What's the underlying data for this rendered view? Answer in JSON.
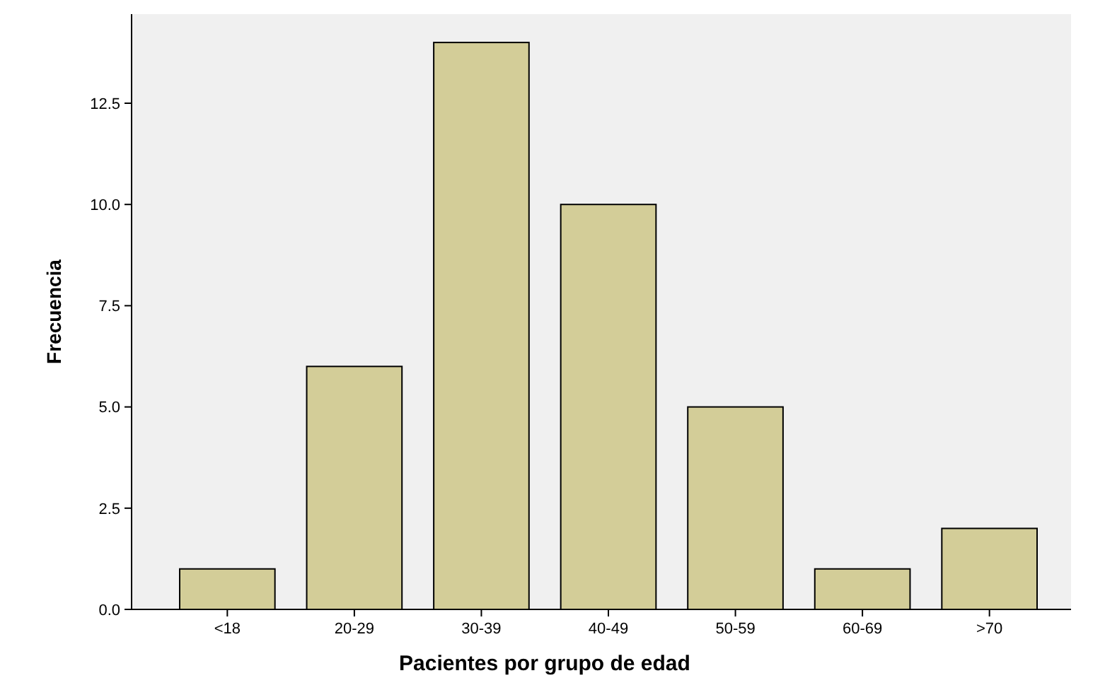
{
  "chart_data": {
    "type": "bar",
    "xlabel": "Pacientes por grupo de edad",
    "ylabel": "Frecuencia",
    "categories": [
      "<18",
      "20-29",
      "30-39",
      "40-49",
      "50-59",
      "60-69",
      ">70"
    ],
    "values": [
      1,
      6,
      14,
      10,
      5,
      1,
      2
    ],
    "color": "#d3cd98",
    "ylim": [
      0,
      14.7
    ],
    "yticks": [
      {
        "value": 0,
        "label": "0.0"
      },
      {
        "value": 2.5,
        "label": "2.5"
      },
      {
        "value": 5,
        "label": "5.0"
      },
      {
        "value": 7.5,
        "label": "7.5"
      },
      {
        "value": 10,
        "label": "10.0"
      },
      {
        "value": 12.5,
        "label": "12.5"
      }
    ],
    "grid": false
  }
}
